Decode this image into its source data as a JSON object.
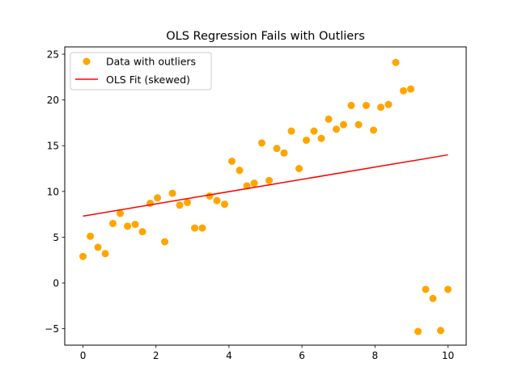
{
  "chart_data": {
    "type": "scatter",
    "title": "OLS Regression Fails with Outliers",
    "xlabel": "",
    "ylabel": "",
    "xlim": [
      -0.5,
      10.5
    ],
    "ylim": [
      -6.8,
      25.8
    ],
    "x_ticks": [
      0,
      2,
      4,
      6,
      8,
      10
    ],
    "y_ticks": [
      -5,
      0,
      5,
      10,
      15,
      20,
      25
    ],
    "grid": false,
    "legend_position": "top-left",
    "series": [
      {
        "name": "Data with outliers",
        "kind": "scatter",
        "color": "#ffa500",
        "points": [
          [
            0.0,
            2.9
          ],
          [
            0.2,
            5.1
          ],
          [
            0.41,
            3.9
          ],
          [
            0.61,
            3.2
          ],
          [
            0.82,
            6.5
          ],
          [
            1.02,
            7.6
          ],
          [
            1.22,
            6.2
          ],
          [
            1.43,
            6.4
          ],
          [
            1.63,
            5.6
          ],
          [
            1.84,
            8.7
          ],
          [
            2.04,
            9.3
          ],
          [
            2.24,
            4.5
          ],
          [
            2.45,
            9.8
          ],
          [
            2.65,
            8.5
          ],
          [
            2.86,
            8.8
          ],
          [
            3.06,
            6.0
          ],
          [
            3.27,
            6.0
          ],
          [
            3.47,
            9.5
          ],
          [
            3.67,
            9.0
          ],
          [
            3.88,
            8.6
          ],
          [
            4.08,
            13.3
          ],
          [
            4.29,
            12.3
          ],
          [
            4.49,
            10.6
          ],
          [
            4.69,
            10.9
          ],
          [
            4.9,
            15.3
          ],
          [
            5.1,
            11.2
          ],
          [
            5.31,
            14.7
          ],
          [
            5.51,
            14.2
          ],
          [
            5.71,
            16.6
          ],
          [
            5.92,
            12.5
          ],
          [
            6.12,
            15.6
          ],
          [
            6.33,
            16.6
          ],
          [
            6.53,
            15.8
          ],
          [
            6.73,
            17.9
          ],
          [
            6.94,
            16.8
          ],
          [
            7.14,
            17.3
          ],
          [
            7.35,
            19.4
          ],
          [
            7.55,
            17.3
          ],
          [
            7.76,
            19.4
          ],
          [
            7.96,
            16.7
          ],
          [
            8.16,
            19.2
          ],
          [
            8.37,
            19.5
          ],
          [
            8.57,
            24.1
          ],
          [
            8.78,
            21.0
          ],
          [
            8.98,
            21.2
          ],
          [
            9.18,
            -5.3
          ],
          [
            9.39,
            -0.7
          ],
          [
            9.59,
            -1.7
          ],
          [
            9.8,
            -5.2
          ],
          [
            10.0,
            -0.7
          ]
        ]
      },
      {
        "name": "OLS Fit (skewed)",
        "kind": "line",
        "color": "#ff0000",
        "points": [
          [
            0.0,
            7.3
          ],
          [
            10.0,
            14.0
          ]
        ]
      }
    ]
  }
}
